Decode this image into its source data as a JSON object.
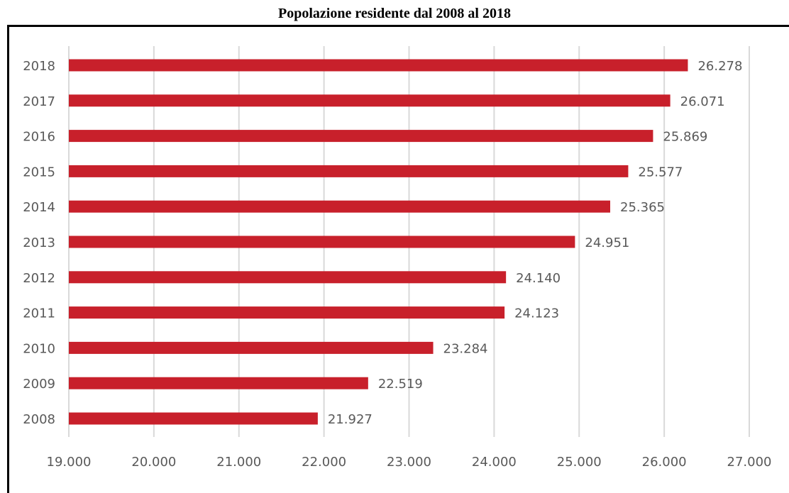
{
  "chart_data": {
    "type": "bar",
    "orientation": "horizontal",
    "title": "Popolazione residente dal 2008 al 2018",
    "categories": [
      "2008",
      "2009",
      "2010",
      "2011",
      "2012",
      "2013",
      "2014",
      "2015",
      "2016",
      "2017",
      "2018"
    ],
    "values": [
      21927,
      22519,
      23284,
      24123,
      24140,
      24951,
      25365,
      25577,
      25869,
      26071,
      26278
    ],
    "value_labels": [
      "21.927",
      "22.519",
      "23.284",
      "24.123",
      "24.140",
      "24.951",
      "25.365",
      "25.577",
      "25.869",
      "26.071",
      "26.278"
    ],
    "xlim": [
      19000,
      27000
    ],
    "x_ticks": [
      19000,
      20000,
      21000,
      22000,
      23000,
      24000,
      25000,
      26000,
      27000
    ],
    "x_tick_labels": [
      "19.000",
      "20.000",
      "21.000",
      "22.000",
      "23.000",
      "24.000",
      "25.000",
      "26.000",
      "27.000"
    ],
    "grid": "vertical",
    "legend": "none",
    "bar_color": "#c8202b",
    "grid_color": "#d9d9d9"
  }
}
